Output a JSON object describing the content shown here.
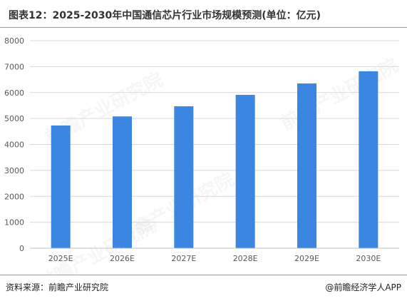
{
  "title": "图表12：2025-2030年中国通信芯片行业市场规模预测(单位：亿元)",
  "source": "资料来源：前瞻产业研究院",
  "brand": "@前瞻经济学人APP",
  "watermark": "前瞻产业研究院",
  "colors": {
    "bar": "#3a86e0",
    "grid": "#d9d9d9",
    "axis_text": "#595959"
  },
  "chart_data": {
    "type": "bar",
    "title": "图表12：2025-2030年中国通信芯片行业市场规模预测(单位：亿元)",
    "xlabel": "",
    "ylabel": "",
    "categories": [
      "2025E",
      "2026E",
      "2027E",
      "2028E",
      "2029E",
      "2030E"
    ],
    "values": [
      4730,
      5080,
      5470,
      5910,
      6350,
      6820
    ],
    "ylim": [
      0,
      8000
    ],
    "yticks": [
      "0",
      "1000",
      "2000",
      "3000",
      "4000",
      "5000",
      "6000",
      "7000",
      "8000"
    ],
    "grid": true,
    "legend": "none"
  }
}
